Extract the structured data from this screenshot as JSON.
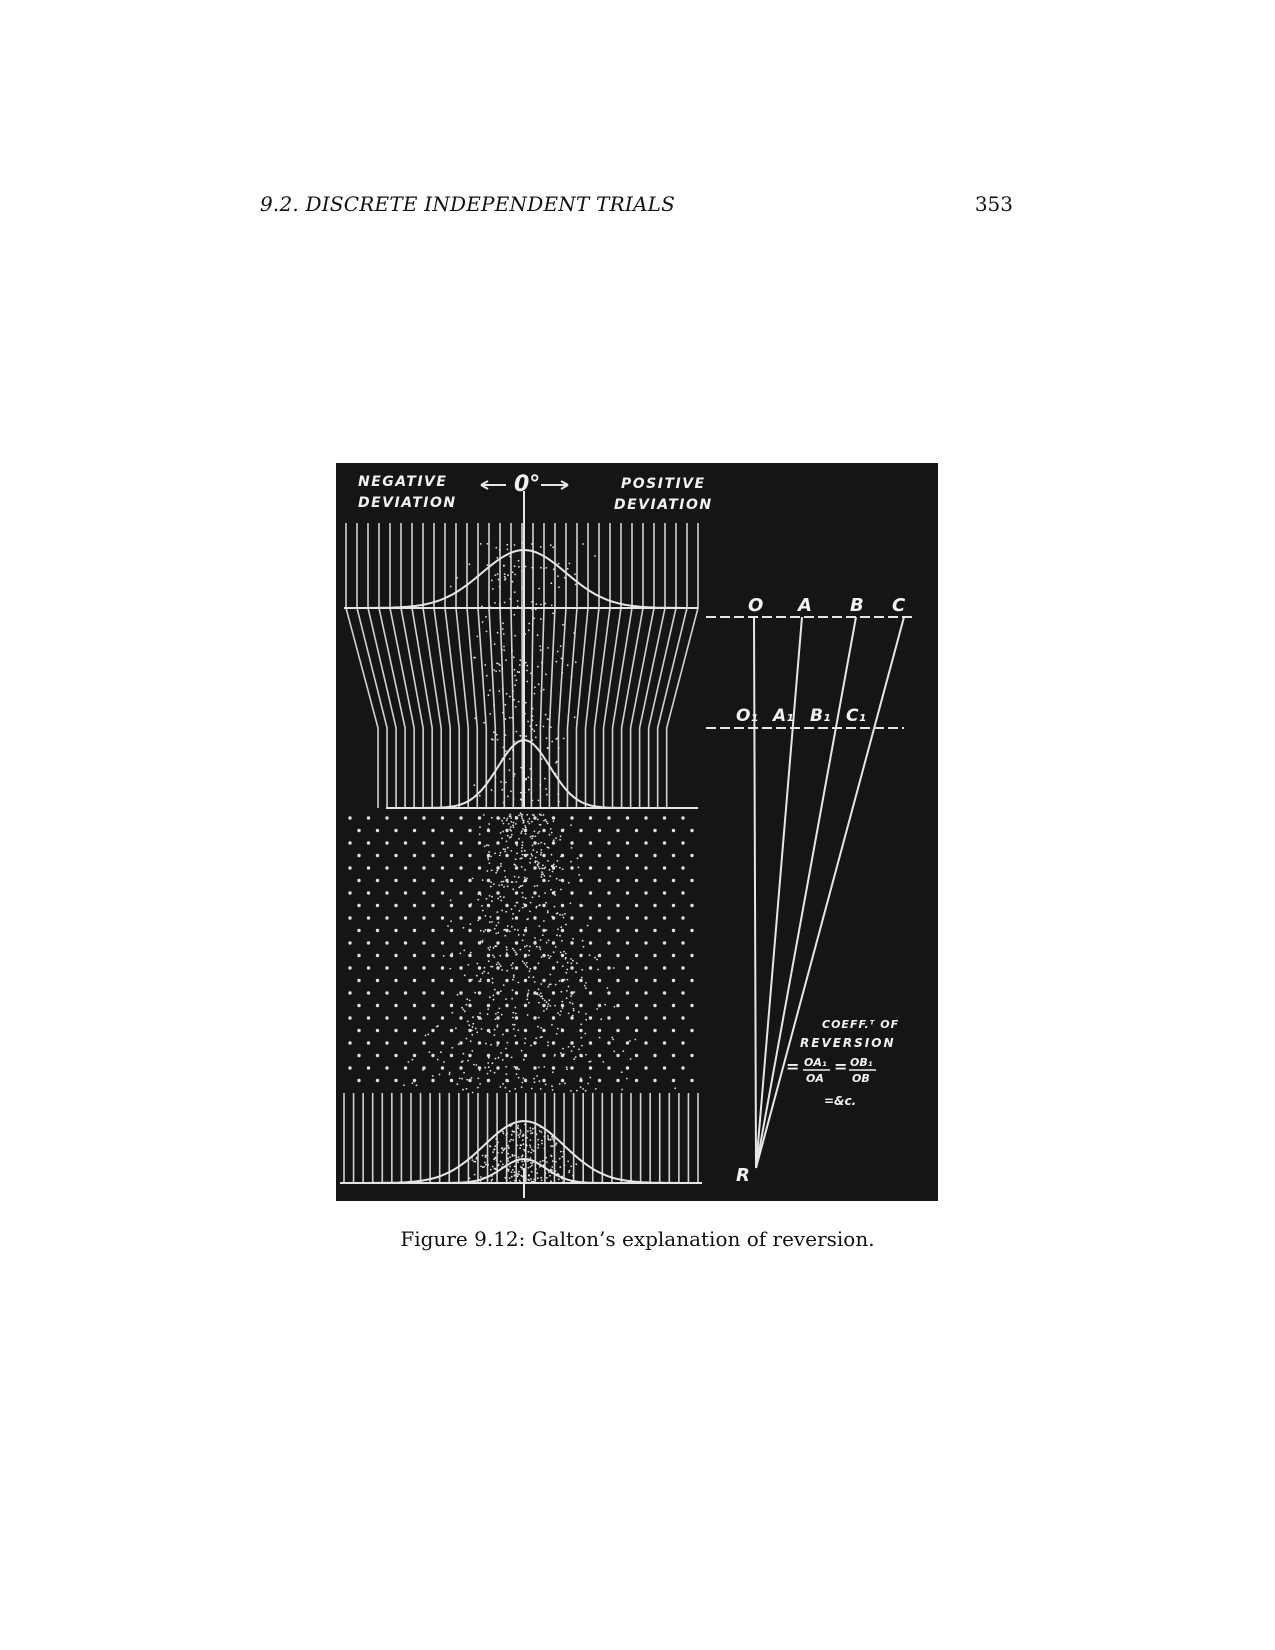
{
  "header": {
    "section": "9.2.  DISCRETE INDEPENDENT TRIALS",
    "page_number": "353"
  },
  "figure": {
    "caption": "Figure 9.12: Galton’s explanation of reversion.",
    "labels": {
      "negative_line1": "NEGATIVE",
      "negative_line2": "DEVIATION",
      "zero": "0°",
      "positive_line1": "POSITIVE",
      "positive_line2": "DEVIATION",
      "top_row": [
        "O",
        "A",
        "B",
        "C"
      ],
      "mid_row": [
        "O₁",
        "A₁",
        "B₁",
        "C₁"
      ],
      "apex": "R",
      "coeff_line1": "COEFF.ᵀ OF",
      "coeff_line2": "REVERSION",
      "frac1_num": "OA₁",
      "frac1_den": "OA",
      "frac2_num": "OB₁",
      "frac2_den": "OB",
      "etc": "=&c."
    }
  }
}
